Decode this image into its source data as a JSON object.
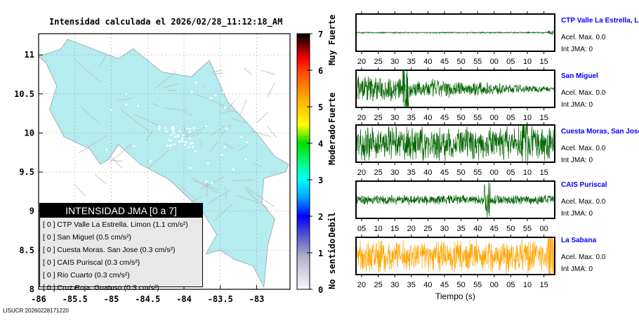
{
  "title": "Intensidad calculada el 2026/02/28_11:12:18_AM",
  "footer": "LISUCR 20260228171220",
  "map": {
    "lon_ticks": [
      "-86",
      "-85.5",
      "-85",
      "-84.5",
      "-84",
      "-83.5",
      "-83"
    ],
    "lat_ticks": [
      "8",
      "8.5",
      "9",
      "9.5",
      "10",
      "10.5",
      "11"
    ],
    "land_color": "#b4ecef"
  },
  "colorbar": {
    "ticks": [
      "0",
      "1",
      "2",
      "3",
      "4",
      "5",
      "6",
      "7"
    ],
    "labels": [
      "No sentido",
      "Debil",
      "Moderado",
      "Fuerte",
      "Muy Fuerte"
    ]
  },
  "legend": {
    "header": "INTENSIDAD JMA [0 a 7]",
    "rows": [
      "[ 0 ]  CTP Valle La Estrella. Limon (1.1 cm/s²)",
      "[ 0 ]  San Miguel (0.5 cm/s²)",
      "[ 0 ]  Cuesta Moras. San Jose (0.3 cm/s²)",
      "[ 0 ]  CAIS Puriscal (0.3 cm/s²)",
      "[ 0 ]  Rio Cuarto (0.3 cm/s²)",
      "[ 0 ]  Cruz Roja. Guatuso (0.3 cm/s²)"
    ]
  },
  "chart_data": {
    "type": "line",
    "xlabel": "Tiempo (s)",
    "series": [
      {
        "name": "CTP Valle La Estrella, L",
        "acel": "Acel. Max. 0.0",
        "int": "Int JMA: 0",
        "color": "#006400",
        "ticks": [
          "20",
          "25",
          "30",
          "35",
          "40",
          "45",
          "50",
          "55",
          "00",
          "05",
          "10",
          "15"
        ],
        "first": 20,
        "amp": 0.02,
        "spike": 0.98
      },
      {
        "name": "San Miguel",
        "acel": "Acel. Max. 0.0",
        "int": "Int JMA: 0",
        "color": "#006400",
        "ticks": [
          "20",
          "25",
          "30",
          "35",
          "40",
          "45",
          "50",
          "55",
          "00",
          "05",
          "10",
          "15"
        ],
        "first": 20,
        "amp": 0.35,
        "spike": 0.25
      },
      {
        "name": "Cuesta Moras, San Jose",
        "acel": "Acel. Max. 0.0",
        "int": "Int JMA: 0",
        "color": "#006400",
        "ticks": [
          "20",
          "25",
          "30",
          "35",
          "40",
          "45",
          "50",
          "55",
          "00",
          "05",
          "10",
          "15"
        ],
        "first": 20,
        "amp": 0.5,
        "spike": 0.85
      },
      {
        "name": "CAIS Puriscal",
        "acel": "Acel. Max. 0.0",
        "int": "Int JMA: 0",
        "color": "#006400",
        "ticks": [
          "05",
          "10",
          "15",
          "20",
          "25",
          "30",
          "35",
          "40",
          "45",
          "50",
          "55",
          "00"
        ],
        "first": 5,
        "amp": 0.15,
        "spike": 0.66
      },
      {
        "name": "La Sabana",
        "acel": "Acel. Max. 0.0",
        "int": "Int JMA: 0",
        "color": "#ffa500",
        "ticks": [
          "20",
          "25",
          "30",
          "35",
          "40",
          "45",
          "50",
          "55",
          "00",
          "05",
          "10",
          "15"
        ],
        "first": 20,
        "amp": 0.5,
        "spike": 0.98
      }
    ]
  }
}
